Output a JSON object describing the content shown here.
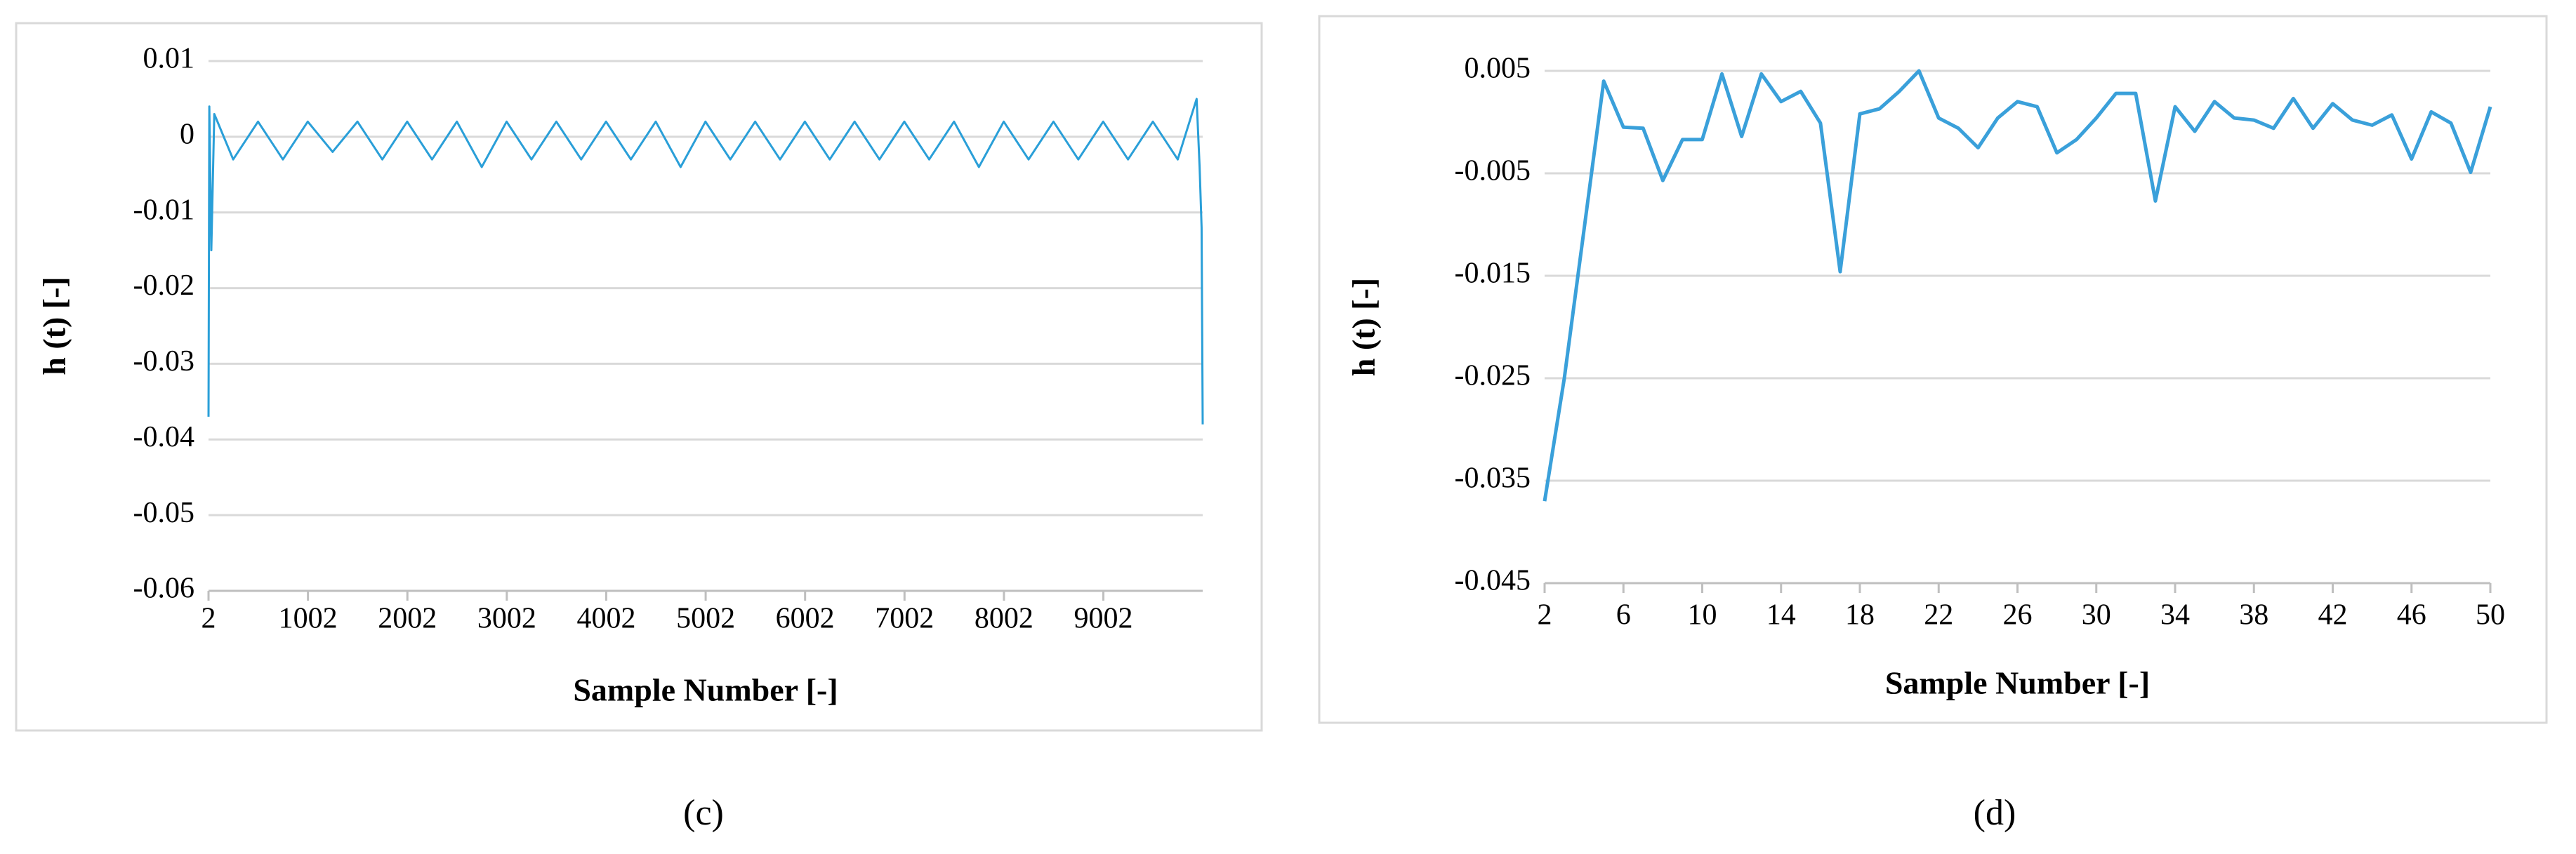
{
  "chart_data": [
    {
      "type": "line",
      "caption": "(c)",
      "xlabel": "Sample Number [-]",
      "ylabel": "h (t) [-]",
      "color": "#2a9fd8",
      "grid": true,
      "x": [
        2,
        10,
        30,
        60,
        250,
        500,
        750,
        1000,
        1250,
        1500,
        1750,
        2000,
        2250,
        2500,
        2750,
        3000,
        3250,
        3500,
        3750,
        4000,
        4250,
        4500,
        4750,
        5000,
        5250,
        5500,
        5750,
        6000,
        6250,
        6500,
        6750,
        7000,
        7250,
        7500,
        7750,
        8000,
        8250,
        8500,
        8750,
        9000,
        9250,
        9500,
        9750,
        9940,
        9970,
        9990,
        10001
      ],
      "values": [
        -0.037,
        0.004,
        -0.015,
        0.003,
        -0.003,
        0.002,
        -0.003,
        0.002,
        -0.002,
        0.002,
        -0.003,
        0.002,
        -0.003,
        0.002,
        -0.004,
        0.002,
        -0.003,
        0.002,
        -0.003,
        0.002,
        -0.003,
        0.002,
        -0.004,
        0.002,
        -0.003,
        0.002,
        -0.003,
        0.002,
        -0.003,
        0.002,
        -0.003,
        0.002,
        -0.003,
        0.002,
        -0.004,
        0.002,
        -0.003,
        0.002,
        -0.003,
        0.002,
        -0.003,
        0.002,
        -0.003,
        0.005,
        -0.004,
        -0.012,
        -0.038
      ],
      "xlim": [
        2,
        10001
      ],
      "xticks": [
        2,
        1002,
        2002,
        3002,
        4002,
        5002,
        6002,
        7002,
        8002,
        9002
      ],
      "ylim": [
        -0.06,
        0.01
      ],
      "yticks": [
        -0.06,
        -0.05,
        -0.04,
        -0.03,
        -0.02,
        -0.01,
        0,
        0.01
      ]
    },
    {
      "type": "line",
      "caption": "(d)",
      "xlabel": "Sample Number [-]",
      "ylabel": "h (t) [-]",
      "color": "#3aa0da",
      "grid": true,
      "x": [
        2,
        3,
        4,
        5,
        6,
        7,
        8,
        9,
        10,
        11,
        12,
        13,
        14,
        15,
        16,
        17,
        18,
        19,
        20,
        21,
        22,
        23,
        24,
        25,
        26,
        27,
        28,
        29,
        30,
        31,
        32,
        33,
        34,
        35,
        36,
        37,
        38,
        39,
        40,
        41,
        42,
        43,
        44,
        45,
        46,
        47,
        48,
        49,
        50
      ],
      "values": [
        -0.037,
        -0.025,
        -0.0105,
        0.004,
        -0.0005,
        -0.0006,
        -0.0057,
        -0.0017,
        -0.0017,
        0.0047,
        -0.0014,
        0.0047,
        0.002,
        0.003,
        -0.0001,
        -0.0146,
        0.0008,
        0.0013,
        0.003,
        0.005,
        0.0004,
        -0.0006,
        -0.0025,
        0.0004,
        0.002,
        0.0015,
        -0.003,
        -0.0017,
        0.0004,
        0.0028,
        0.0028,
        -0.0077,
        0.0015,
        -0.0009,
        0.002,
        0.0004,
        0.0002,
        -0.0006,
        0.0023,
        -0.0006,
        0.0018,
        0.0002,
        -0.0003,
        0.0007,
        -0.0036,
        0.001,
        -0.0001,
        -0.0049,
        0.0015
      ],
      "xlim": [
        2,
        50
      ],
      "xticks": [
        2,
        6,
        10,
        14,
        18,
        22,
        26,
        30,
        34,
        38,
        42,
        46,
        50
      ],
      "ylim": [
        -0.045,
        0.005
      ],
      "yticks": [
        -0.045,
        -0.035,
        -0.025,
        -0.015,
        -0.005,
        0.005
      ]
    }
  ]
}
